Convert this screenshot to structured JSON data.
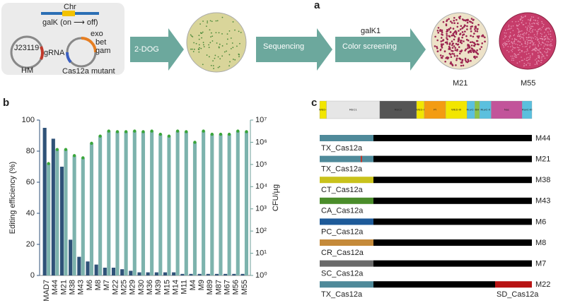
{
  "panel_labels": [
    "a",
    "b",
    "c"
  ],
  "schematic": {
    "chr": "Chr",
    "galk": "galK (on ⟶ off)",
    "promoter": "J23119",
    "grna": "gRNA",
    "hm": "HM",
    "exo": "exo",
    "bet": "bet",
    "gam": "gam",
    "cas": "Cas12a mutant"
  },
  "workflow": {
    "step1": "2-DOG",
    "step2": "Sequencing",
    "step3_top": "galK1",
    "step3": "Color screening",
    "plate1": "M21",
    "plate2": "M55"
  },
  "chart_data": {
    "type": "bar",
    "ylabel": "Editing efficiency (%)",
    "y2label": "CFU/µg",
    "categories": [
      "MAD7",
      "M44",
      "M21",
      "M38",
      "M43",
      "M6",
      "M8",
      "M7",
      "M22",
      "M25",
      "M29",
      "M30",
      "M36",
      "M39",
      "M15",
      "M14",
      "M11",
      "M4",
      "M9",
      "M89",
      "M87",
      "M67",
      "M56",
      "M55"
    ],
    "series": [
      {
        "color": "#2f5278",
        "values": [
          95,
          88,
          70,
          23,
          12,
          9,
          7,
          5,
          5,
          4,
          3,
          2,
          2,
          2,
          2,
          2,
          1,
          1,
          1,
          1,
          1,
          1,
          1,
          1
        ]
      },
      {
        "color": "#7db3ad",
        "marker_color": "#3aa63a",
        "axis": "y2",
        "values": [
          110000,
          470000,
          470000,
          250000,
          200000,
          900000,
          1900000,
          3200000,
          3000000,
          3000000,
          3200000,
          3000000,
          3200000,
          2300000,
          1900000,
          3200000,
          3000000,
          1000000,
          3200000,
          2300000,
          2300000,
          2300000,
          3200000,
          3000000
        ]
      }
    ],
    "ylim": [
      0,
      100
    ],
    "yticks": [
      0,
      20,
      40,
      60,
      80,
      100
    ],
    "y2lim": [
      1,
      10000000
    ],
    "y2log": true,
    "y2ticks": [
      {
        "value": 1,
        "label": "10⁰"
      },
      {
        "value": 10,
        "label": "10¹"
      },
      {
        "value": 100,
        "label": "10²"
      },
      {
        "value": 1000,
        "label": "10³"
      },
      {
        "value": 10000,
        "label": "10⁴"
      },
      {
        "value": 100000,
        "label": "10⁵"
      },
      {
        "value": 1000000,
        "label": "10⁶"
      },
      {
        "value": 10000000,
        "label": "10⁷"
      }
    ],
    "left_color": "#2f5278",
    "right_color": "#6c9e98"
  },
  "constructs": {
    "domains": [
      {
        "name": "WED-I",
        "color": "#f2e600"
      },
      {
        "name": "REC1",
        "color": "#e6e6e6"
      },
      {
        "name": "REC2",
        "color": "#555555"
      },
      {
        "name": "WED-II",
        "color": "#f2e600"
      },
      {
        "name": "PI",
        "color": "#f39c12"
      },
      {
        "name": "WED-III",
        "color": "#f2e600"
      },
      {
        "name": "RuvC-I",
        "color": "#5bc0de"
      },
      {
        "name": "BH",
        "color": "#8bc34a"
      },
      {
        "name": "RuvC-II",
        "color": "#5bc0de"
      },
      {
        "name": "Nuc",
        "color": "#c2549a"
      },
      {
        "name": "RuvC-III",
        "color": "#5bc0de"
      }
    ],
    "rows": [
      {
        "name": "M44",
        "label": "TX_Cas12a",
        "color": "#4f8a9a"
      },
      {
        "name": "M21",
        "label": "TX_Cas12a",
        "color": "#4f8a9a",
        "mutation_color": "#c0392b"
      },
      {
        "name": "M38",
        "label": "CT_Cas12a",
        "color": "#c9c21c"
      },
      {
        "name": "M43",
        "label": "CA_Cas12a",
        "color": "#4a8c2a"
      },
      {
        "name": "M6",
        "label": "PC_Cas12a",
        "color": "#1d5a99"
      },
      {
        "name": "M8",
        "label": "CR_Cas12a",
        "color": "#c58a3a"
      },
      {
        "name": "M7",
        "label": "SC_Cas12a",
        "color": "#6a6a6a"
      },
      {
        "name": "M22",
        "label": "TX_Cas12a",
        "color": "#4f8a9a",
        "tail_label": "SD_Cas12a",
        "tail_color": "#b81414"
      }
    ]
  }
}
